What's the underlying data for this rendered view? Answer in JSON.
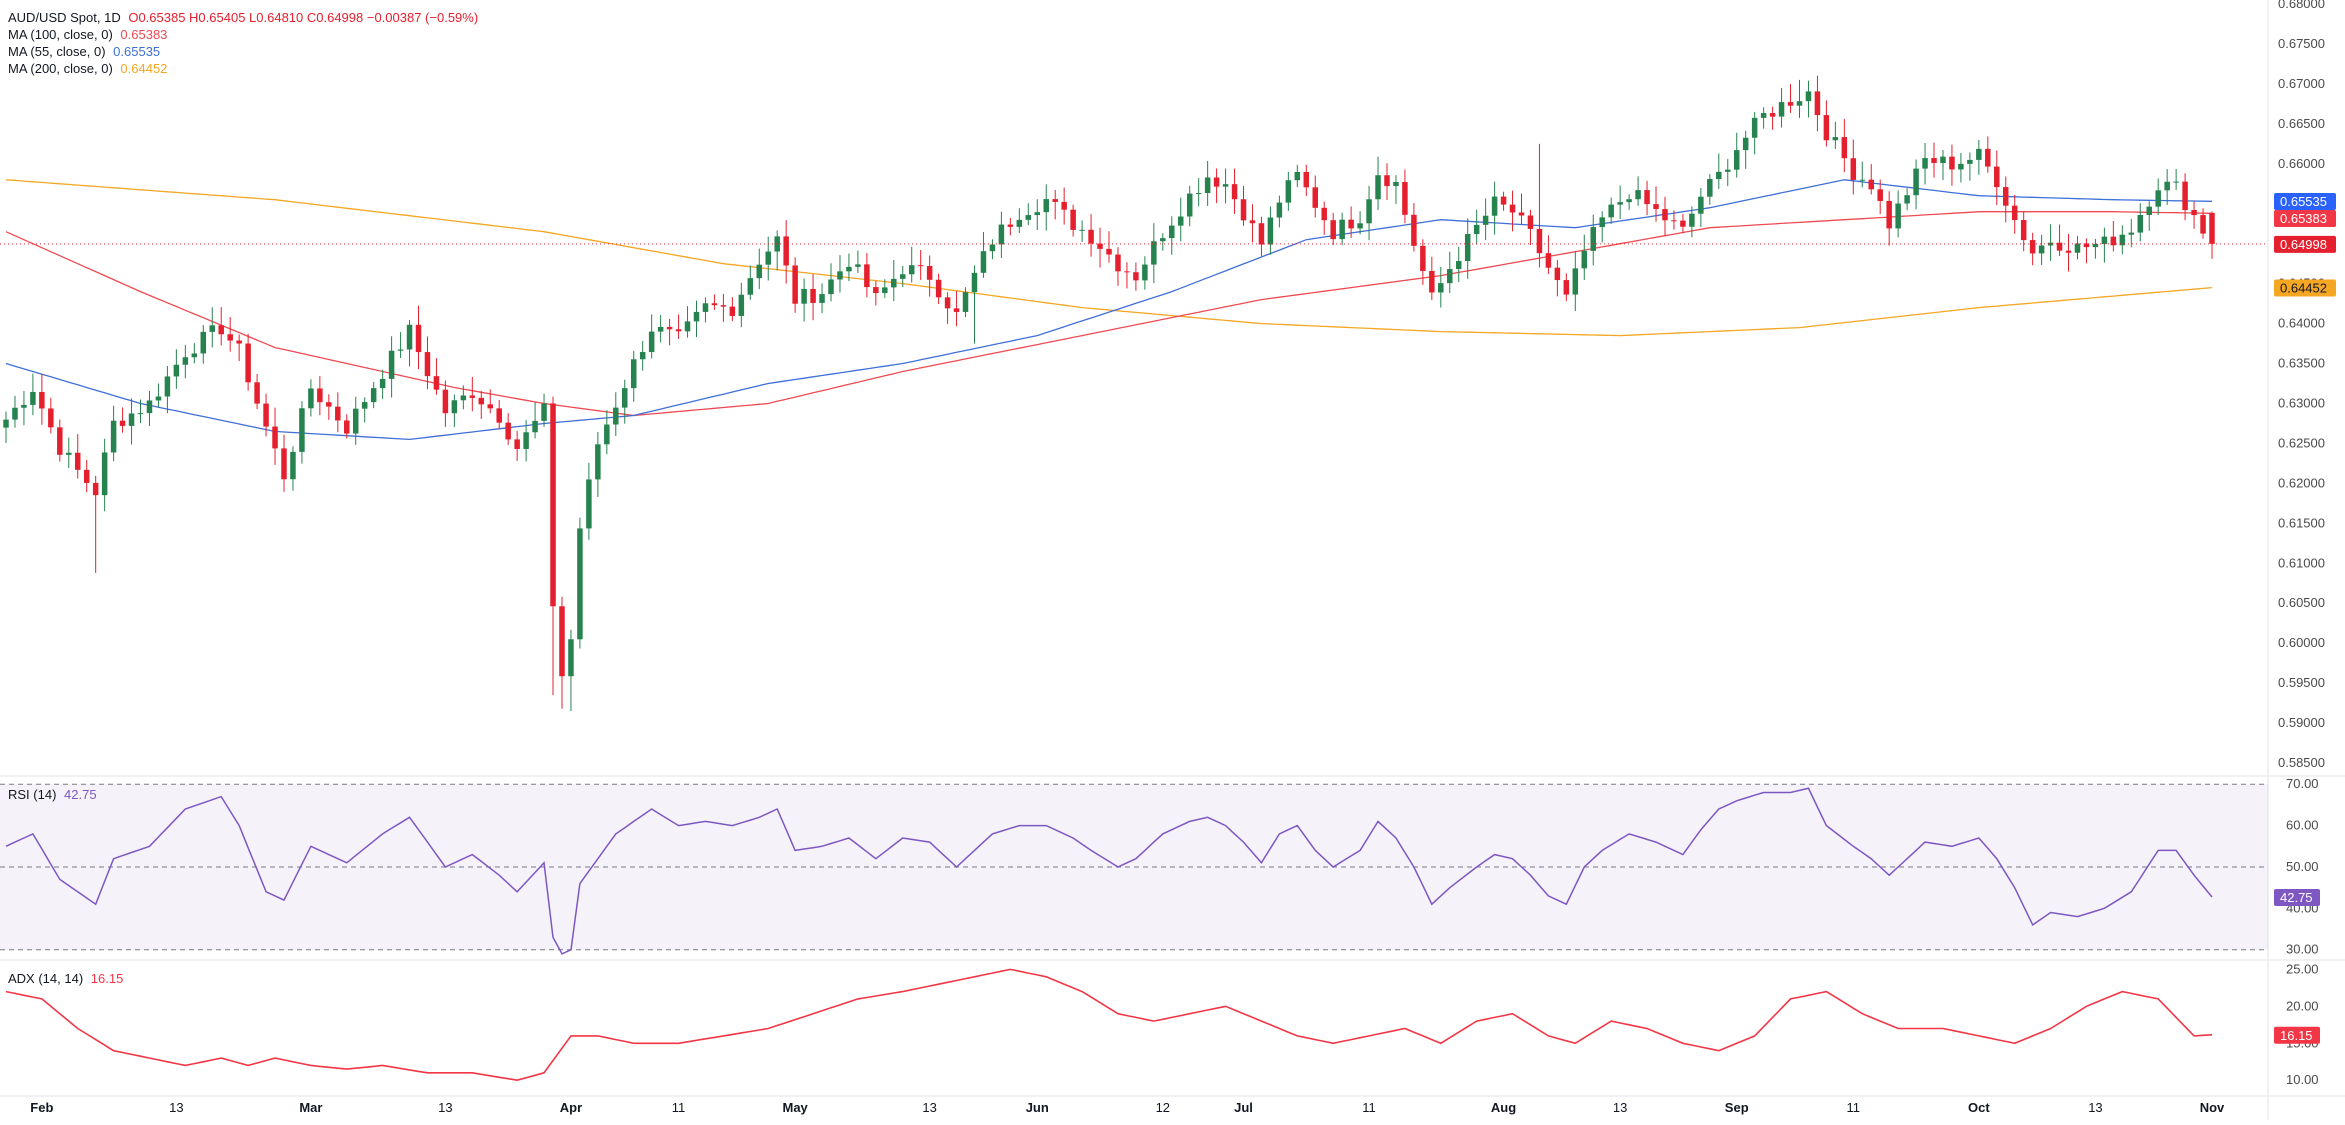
{
  "legend": {
    "symbol": "AUD/USD Spot, 1D",
    "ohlc": "O0.65385  H0.65405  L0.64810  C0.64998  −0.00387 (−0.59%)",
    "ma100_label": "MA (100, close, 0)",
    "ma100_value": "0.65383",
    "ma55_label": "MA (55, close, 0)",
    "ma55_value": "0.65535",
    "ma200_label": "MA (200, close, 0)",
    "ma200_value": "0.64452"
  },
  "rsi_legend": {
    "label": "RSI (14)",
    "value": "42.75"
  },
  "adx_legend": {
    "label": "ADX (14, 14)",
    "value": "16.15"
  },
  "colors": {
    "up": "#26834f",
    "down": "#e5202e",
    "ma55": "#3f6fd8",
    "ma100": "#ef4a52",
    "ma200": "#f5a623",
    "rsi": "#7e57c2",
    "adx": "#f23645"
  },
  "chart_data": [
    {
      "type": "candlestick",
      "title": "AUD/USD Spot, 1D",
      "x_ticks": [
        "Feb",
        "13",
        "Mar",
        "13",
        "Apr",
        "11",
        "May",
        "13",
        "Jun",
        "12",
        "Jul",
        "11",
        "Aug",
        "13",
        "Sep",
        "11",
        "Oct",
        "13",
        "Nov"
      ],
      "y_ticks": [
        "0.68000",
        "0.67500",
        "0.67000",
        "0.66500",
        "0.66000",
        "0.65500",
        "0.65000",
        "0.64500",
        "0.64000",
        "0.63500",
        "0.63000",
        "0.62500",
        "0.62000",
        "0.61500",
        "0.61000",
        "0.60500",
        "0.60000",
        "0.59500",
        "0.59000",
        "0.58500"
      ],
      "ylim": [
        0.5835,
        0.6805
      ],
      "close_keypoints": [
        [
          0,
          0.628
        ],
        [
          3,
          0.632
        ],
        [
          6,
          0.6245
        ],
        [
          8,
          0.6215
        ],
        [
          10,
          0.619
        ],
        [
          12,
          0.6275
        ],
        [
          16,
          0.63
        ],
        [
          20,
          0.6365
        ],
        [
          24,
          0.6395
        ],
        [
          26,
          0.6365
        ],
        [
          29,
          0.627
        ],
        [
          31,
          0.621
        ],
        [
          34,
          0.632
        ],
        [
          38,
          0.627
        ],
        [
          42,
          0.634
        ],
        [
          45,
          0.639
        ],
        [
          49,
          0.629
        ],
        [
          52,
          0.6315
        ],
        [
          55,
          0.6285
        ],
        [
          57,
          0.6245
        ],
        [
          60,
          0.629
        ],
        [
          61,
          0.605
        ],
        [
          62,
          0.596
        ],
        [
          63,
          0.6005
        ],
        [
          64,
          0.6145
        ],
        [
          66,
          0.625
        ],
        [
          68,
          0.63
        ],
        [
          70,
          0.635
        ],
        [
          72,
          0.6395
        ],
        [
          75,
          0.638
        ],
        [
          78,
          0.642
        ],
        [
          81,
          0.642
        ],
        [
          84,
          0.648
        ],
        [
          86,
          0.6505
        ],
        [
          88,
          0.643
        ],
        [
          91,
          0.644
        ],
        [
          94,
          0.648
        ],
        [
          97,
          0.643
        ],
        [
          100,
          0.647
        ],
        [
          103,
          0.646
        ],
        [
          106,
          0.641
        ],
        [
          108,
          0.646
        ],
        [
          110,
          0.6505
        ],
        [
          113,
          0.654
        ],
        [
          116,
          0.6555
        ],
        [
          119,
          0.6525
        ],
        [
          121,
          0.651
        ],
        [
          124,
          0.6475
        ],
        [
          126,
          0.646
        ],
        [
          129,
          0.6515
        ],
        [
          132,
          0.656
        ],
        [
          134,
          0.6585
        ],
        [
          136,
          0.6575
        ],
        [
          138,
          0.654
        ],
        [
          140,
          0.65
        ],
        [
          142,
          0.6555
        ],
        [
          144,
          0.6585
        ],
        [
          146,
          0.655
        ],
        [
          148,
          0.6515
        ],
        [
          151,
          0.6535
        ],
        [
          153,
          0.659
        ],
        [
          155,
          0.6575
        ],
        [
          157,
          0.65
        ],
        [
          159,
          0.643
        ],
        [
          161,
          0.647
        ],
        [
          164,
          0.652
        ],
        [
          166,
          0.655
        ],
        [
          168,
          0.654
        ],
        [
          170,
          0.651
        ],
        [
          172,
          0.647
        ],
        [
          174,
          0.643
        ],
        [
          176,
          0.649
        ],
        [
          178,
          0.653
        ],
        [
          181,
          0.6565
        ],
        [
          184,
          0.654
        ],
        [
          187,
          0.6515
        ],
        [
          189,
          0.656
        ],
        [
          191,
          0.6585
        ],
        [
          193,
          0.662
        ],
        [
          196,
          0.666
        ],
        [
          199,
          0.668
        ],
        [
          201,
          0.669
        ],
        [
          203,
          0.664
        ],
        [
          206,
          0.659
        ],
        [
          208,
          0.6575
        ],
        [
          210,
          0.6525
        ],
        [
          212,
          0.6565
        ],
        [
          214,
          0.6605
        ],
        [
          217,
          0.66
        ],
        [
          220,
          0.661
        ],
        [
          222,
          0.658
        ],
        [
          224,
          0.653
        ],
        [
          226,
          0.649
        ],
        [
          228,
          0.6505
        ],
        [
          231,
          0.6495
        ],
        [
          234,
          0.65
        ],
        [
          237,
          0.652
        ],
        [
          240,
          0.6575
        ],
        [
          242,
          0.657
        ],
        [
          244,
          0.6535
        ],
        [
          246,
          0.65
        ]
      ],
      "ma100_keypoints": [
        [
          0,
          0.6515
        ],
        [
          15,
          0.644
        ],
        [
          30,
          0.637
        ],
        [
          50,
          0.632
        ],
        [
          60,
          0.63
        ],
        [
          70,
          0.6285
        ],
        [
          85,
          0.63
        ],
        [
          100,
          0.634
        ],
        [
          120,
          0.6385
        ],
        [
          140,
          0.643
        ],
        [
          160,
          0.646
        ],
        [
          175,
          0.649
        ],
        [
          190,
          0.652
        ],
        [
          205,
          0.653
        ],
        [
          220,
          0.654
        ],
        [
          235,
          0.654
        ],
        [
          246,
          0.6538
        ]
      ],
      "ma55_keypoints": [
        [
          0,
          0.635
        ],
        [
          15,
          0.63
        ],
        [
          30,
          0.6265
        ],
        [
          45,
          0.6255
        ],
        [
          60,
          0.6275
        ],
        [
          70,
          0.6285
        ],
        [
          85,
          0.6325
        ],
        [
          100,
          0.635
        ],
        [
          115,
          0.6385
        ],
        [
          130,
          0.644
        ],
        [
          145,
          0.6505
        ],
        [
          160,
          0.653
        ],
        [
          175,
          0.652
        ],
        [
          190,
          0.6545
        ],
        [
          205,
          0.658
        ],
        [
          220,
          0.656
        ],
        [
          235,
          0.6555
        ],
        [
          246,
          0.6553
        ]
      ],
      "ma200_keypoints": [
        [
          0,
          0.658
        ],
        [
          30,
          0.6555
        ],
        [
          60,
          0.6515
        ],
        [
          80,
          0.6475
        ],
        [
          100,
          0.645
        ],
        [
          120,
          0.642
        ],
        [
          140,
          0.64
        ],
        [
          160,
          0.639
        ],
        [
          180,
          0.6385
        ],
        [
          200,
          0.6395
        ],
        [
          220,
          0.642
        ],
        [
          246,
          0.6445
        ]
      ],
      "last_candle": {
        "open": 0.65385,
        "high": 0.65405,
        "low": 0.6481,
        "close": 0.64998
      },
      "price_line": 0.64998,
      "badges": [
        {
          "label": "0.65535",
          "value": 0.65535,
          "color": "#2962ff"
        },
        {
          "label": "0.65383",
          "value": 0.65383,
          "color": "#f23645"
        },
        {
          "label": "0.64998",
          "value": 0.64998,
          "color": "#e5202e"
        },
        {
          "label": "0.64452",
          "value": 0.64452,
          "color": "#f5a623"
        }
      ]
    },
    {
      "type": "line",
      "title": "RSI (14)",
      "y_ticks": [
        "70.00",
        "60.00",
        "50.00",
        "40.00",
        "30.00"
      ],
      "ylim": [
        28,
        71.5
      ],
      "levels": [
        70,
        50,
        30
      ],
      "keypoints": [
        [
          0,
          55
        ],
        [
          3,
          58
        ],
        [
          6,
          47
        ],
        [
          8,
          44
        ],
        [
          10,
          41
        ],
        [
          12,
          52
        ],
        [
          16,
          55
        ],
        [
          20,
          64
        ],
        [
          24,
          67
        ],
        [
          26,
          60
        ],
        [
          29,
          44
        ],
        [
          31,
          42
        ],
        [
          34,
          55
        ],
        [
          38,
          51
        ],
        [
          42,
          58
        ],
        [
          45,
          62
        ],
        [
          49,
          50
        ],
        [
          52,
          53
        ],
        [
          55,
          48
        ],
        [
          57,
          44
        ],
        [
          60,
          51
        ],
        [
          61,
          33
        ],
        [
          62,
          29
        ],
        [
          63,
          30
        ],
        [
          64,
          46
        ],
        [
          66,
          52
        ],
        [
          68,
          58
        ],
        [
          70,
          61
        ],
        [
          72,
          64
        ],
        [
          75,
          60
        ],
        [
          78,
          61
        ],
        [
          81,
          60
        ],
        [
          84,
          62
        ],
        [
          86,
          64
        ],
        [
          88,
          54
        ],
        [
          91,
          55
        ],
        [
          94,
          57
        ],
        [
          97,
          52
        ],
        [
          100,
          57
        ],
        [
          103,
          56
        ],
        [
          106,
          50
        ],
        [
          108,
          54
        ],
        [
          110,
          58
        ],
        [
          113,
          60
        ],
        [
          116,
          60
        ],
        [
          119,
          57
        ],
        [
          121,
          54
        ],
        [
          124,
          50
        ],
        [
          126,
          52
        ],
        [
          129,
          58
        ],
        [
          132,
          61
        ],
        [
          134,
          62
        ],
        [
          136,
          60
        ],
        [
          138,
          56
        ],
        [
          140,
          51
        ],
        [
          142,
          58
        ],
        [
          144,
          60
        ],
        [
          146,
          54
        ],
        [
          148,
          50
        ],
        [
          151,
          54
        ],
        [
          153,
          61
        ],
        [
          155,
          57
        ],
        [
          157,
          50
        ],
        [
          159,
          41
        ],
        [
          161,
          45
        ],
        [
          164,
          50
        ],
        [
          166,
          53
        ],
        [
          168,
          52
        ],
        [
          170,
          48
        ],
        [
          172,
          43
        ],
        [
          174,
          41
        ],
        [
          176,
          50
        ],
        [
          178,
          54
        ],
        [
          181,
          58
        ],
        [
          184,
          56
        ],
        [
          187,
          53
        ],
        [
          189,
          59
        ],
        [
          191,
          64
        ],
        [
          193,
          66
        ],
        [
          196,
          68
        ],
        [
          199,
          68
        ],
        [
          201,
          69
        ],
        [
          203,
          60
        ],
        [
          206,
          55
        ],
        [
          208,
          52
        ],
        [
          210,
          48
        ],
        [
          212,
          52
        ],
        [
          214,
          56
        ],
        [
          217,
          55
        ],
        [
          220,
          57
        ],
        [
          222,
          52
        ],
        [
          224,
          45
        ],
        [
          226,
          36
        ],
        [
          228,
          39
        ],
        [
          231,
          38
        ],
        [
          234,
          40
        ],
        [
          237,
          44
        ],
        [
          240,
          54
        ],
        [
          242,
          54
        ],
        [
          244,
          48
        ],
        [
          246,
          42.75
        ]
      ],
      "last_value": "42.75"
    },
    {
      "type": "line",
      "title": "ADX (14, 14)",
      "y_ticks": [
        "25.00",
        "20.00",
        "15.00",
        "10.00"
      ],
      "ylim": [
        8,
        26
      ],
      "keypoints": [
        [
          0,
          22
        ],
        [
          4,
          21
        ],
        [
          8,
          17
        ],
        [
          12,
          14
        ],
        [
          16,
          13
        ],
        [
          20,
          12
        ],
        [
          24,
          13
        ],
        [
          27,
          12
        ],
        [
          30,
          13
        ],
        [
          34,
          12
        ],
        [
          38,
          11.5
        ],
        [
          42,
          12
        ],
        [
          47,
          11
        ],
        [
          52,
          11
        ],
        [
          57,
          10
        ],
        [
          60,
          11
        ],
        [
          63,
          16
        ],
        [
          66,
          16
        ],
        [
          70,
          15
        ],
        [
          75,
          15
        ],
        [
          80,
          16
        ],
        [
          85,
          17
        ],
        [
          90,
          19
        ],
        [
          95,
          21
        ],
        [
          100,
          22
        ],
        [
          104,
          23
        ],
        [
          108,
          24
        ],
        [
          112,
          25
        ],
        [
          116,
          24
        ],
        [
          120,
          22
        ],
        [
          124,
          19
        ],
        [
          128,
          18
        ],
        [
          132,
          19
        ],
        [
          136,
          20
        ],
        [
          140,
          18
        ],
        [
          144,
          16
        ],
        [
          148,
          15
        ],
        [
          152,
          16
        ],
        [
          156,
          17
        ],
        [
          160,
          15
        ],
        [
          164,
          18
        ],
        [
          168,
          19
        ],
        [
          172,
          16
        ],
        [
          175,
          15
        ],
        [
          179,
          18
        ],
        [
          183,
          17
        ],
        [
          187,
          15
        ],
        [
          191,
          14
        ],
        [
          195,
          16
        ],
        [
          199,
          21
        ],
        [
          203,
          22
        ],
        [
          207,
          19
        ],
        [
          211,
          17
        ],
        [
          216,
          17
        ],
        [
          220,
          16
        ],
        [
          224,
          15
        ],
        [
          228,
          17
        ],
        [
          232,
          20
        ],
        [
          236,
          22
        ],
        [
          240,
          21
        ],
        [
          244,
          16
        ],
        [
          246,
          16.15
        ]
      ],
      "last_value": "16.15"
    }
  ]
}
